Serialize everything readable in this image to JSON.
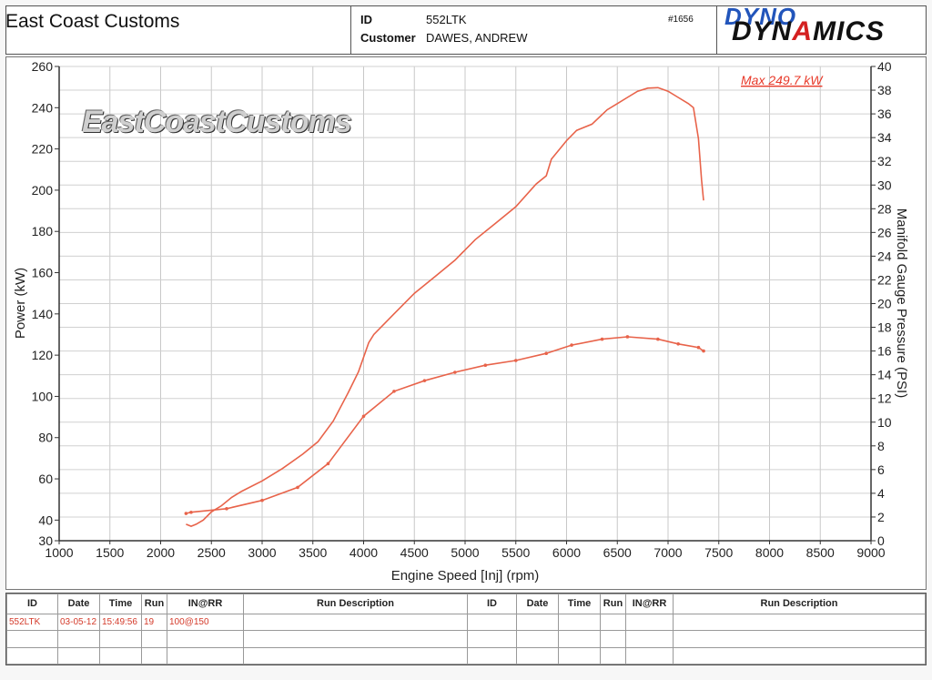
{
  "header": {
    "company": "East Coast Customs",
    "id_label": "ID",
    "id_value": "552LTK",
    "customer_label": "Customer",
    "customer_value": "DAWES, ANDREW",
    "tag": "#1656",
    "logo_top": "DYNO",
    "logo_bottom_1": "DYN",
    "logo_bottom_a": "A",
    "logo_bottom_2": "MICS"
  },
  "watermark": "EastCoastCustoms",
  "chart_data": {
    "type": "line",
    "xlabel": "Engine Speed [Inj] (rpm)",
    "ylabel": "Power (kW)",
    "y2label": "Manifold Gauge Pressure (PSI)",
    "annotation": "Max 249.7 kW",
    "xlim": [
      1000,
      9000
    ],
    "ylim": [
      30,
      260
    ],
    "y2lim": [
      0,
      40
    ],
    "x_ticks": [
      1000,
      1500,
      2000,
      2500,
      3000,
      3500,
      4000,
      4500,
      5000,
      5500,
      6000,
      6500,
      7000,
      7500,
      8000,
      8500,
      9000
    ],
    "y_ticks": [
      30,
      40,
      60,
      80,
      100,
      120,
      140,
      160,
      180,
      200,
      220,
      240,
      260
    ],
    "y2_ticks": [
      0,
      2,
      4,
      6,
      8,
      10,
      12,
      14,
      16,
      18,
      20,
      22,
      24,
      26,
      28,
      30,
      32,
      34,
      36,
      38,
      40
    ],
    "grid": true,
    "line_color": "#e8634a",
    "series": [
      {
        "axis": "left",
        "x": [
          2250,
          2300,
          2350,
          2420,
          2500,
          2600,
          2700,
          2800,
          3000,
          3200,
          3400,
          3550,
          3700,
          3850,
          3950,
          4050,
          4100,
          4300,
          4500,
          4700,
          4900,
          5100,
          5300,
          5500,
          5700,
          5800,
          5850,
          6000,
          6100,
          6250,
          6400,
          6500,
          6600,
          6700,
          6800,
          6900,
          7000,
          7100,
          7200,
          7250,
          7300,
          7330,
          7350
        ],
        "y": [
          38,
          37,
          38,
          40,
          44,
          47,
          51,
          54,
          59,
          65,
          72,
          78,
          88,
          102,
          112,
          126,
          130,
          140,
          150,
          158,
          166,
          176,
          184,
          192,
          203,
          207,
          215,
          224,
          229,
          232,
          239,
          242,
          245,
          248,
          249.5,
          249.7,
          248,
          245,
          242,
          240,
          225,
          205,
          195
        ]
      },
      {
        "axis": "right",
        "x": [
          2250,
          2300,
          2650,
          3000,
          3350,
          3650,
          4000,
          4300,
          4600,
          4900,
          5200,
          5500,
          5800,
          6050,
          6350,
          6600,
          6900,
          7100,
          7300,
          7350
        ],
        "y": [
          2.3,
          2.4,
          2.7,
          3.4,
          4.5,
          6.5,
          10.5,
          12.6,
          13.5,
          14.2,
          14.8,
          15.2,
          15.8,
          16.5,
          17,
          17.2,
          17,
          16.6,
          16.3,
          16
        ]
      }
    ]
  },
  "runs": {
    "headers": [
      "ID",
      "Date",
      "Time",
      "Run",
      "IN@RR",
      "Run Description",
      "ID",
      "Date",
      "Time",
      "Run",
      "IN@RR",
      "Run Description"
    ],
    "row1": [
      "552LTK",
      "03-05-12",
      "15:49:56",
      "19",
      "100@150",
      "",
      "",
      "",
      "",
      "",
      "",
      ""
    ]
  }
}
